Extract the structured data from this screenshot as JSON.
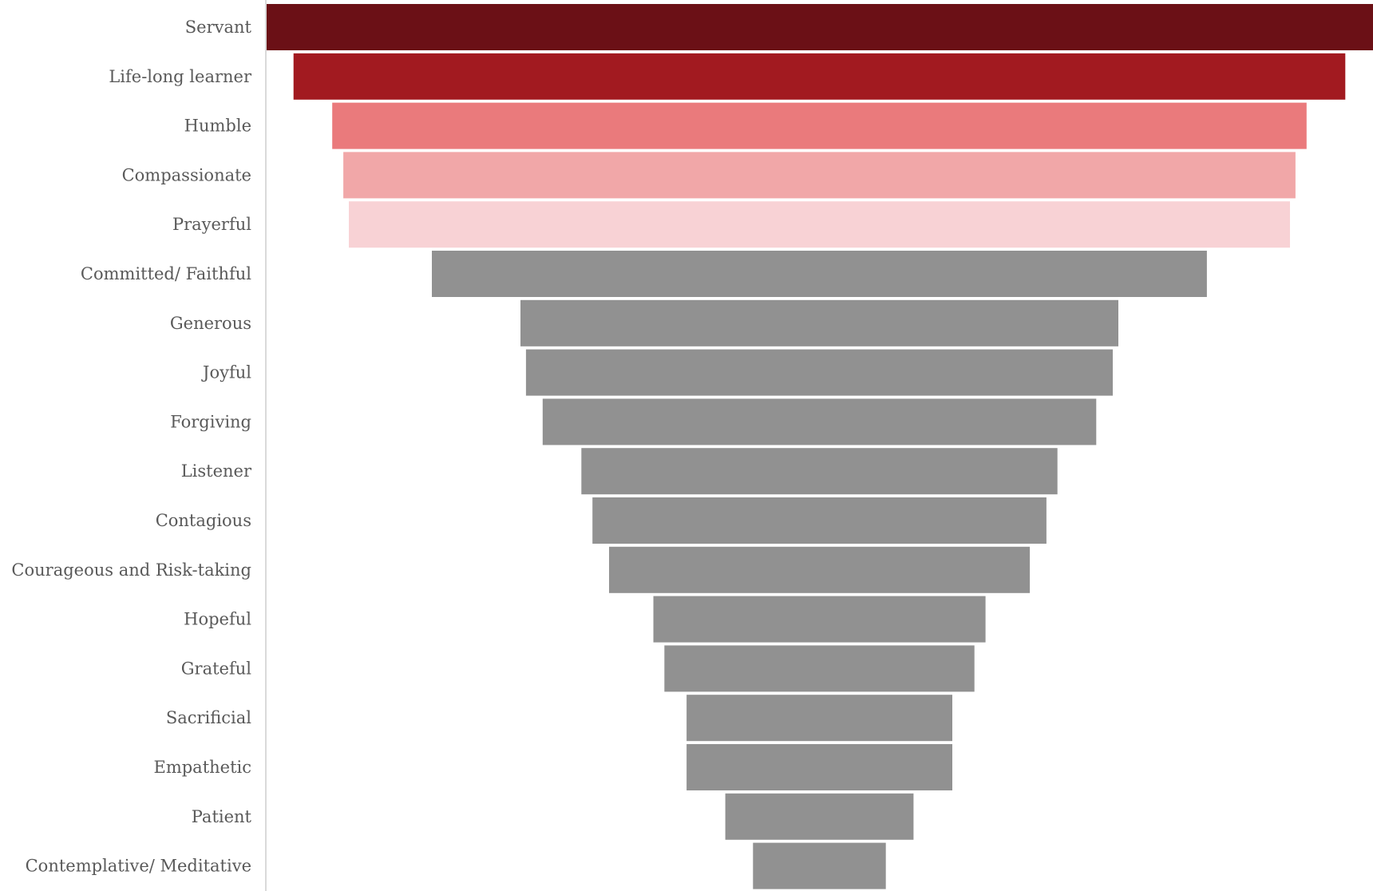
{
  "chart_data": {
    "type": "bar",
    "subtype": "funnel",
    "title": "",
    "xlabel": "",
    "ylabel": "",
    "grid": false,
    "legend": "none",
    "categories": [
      "Servant",
      "Life-long learner",
      "Humble",
      "Compassionate",
      "Prayerful",
      "Committed/ Faithful",
      "Generous",
      "Joyful",
      "Forgiving",
      "Listener",
      "Contagious",
      "Courageous and Risk-taking",
      "Hopeful",
      "Grateful",
      "Sacrificial",
      "Empathetic",
      "Patient",
      "Contemplative/ Meditative"
    ],
    "values": [
      100,
      95,
      88,
      86,
      85,
      70,
      54,
      53,
      50,
      43,
      41,
      38,
      30,
      28,
      24,
      24,
      17,
      12
    ],
    "xlim": [
      0,
      100
    ],
    "colors": [
      "#6b1016",
      "#a21a20",
      "#ea7a7c",
      "#f1a7a8",
      "#f8d2d5",
      "#919191",
      "#919191",
      "#919191",
      "#919191",
      "#919191",
      "#919191",
      "#919191",
      "#919191",
      "#919191",
      "#919191",
      "#919191",
      "#919191",
      "#919191"
    ],
    "axis_color": "#d9d9d9"
  }
}
